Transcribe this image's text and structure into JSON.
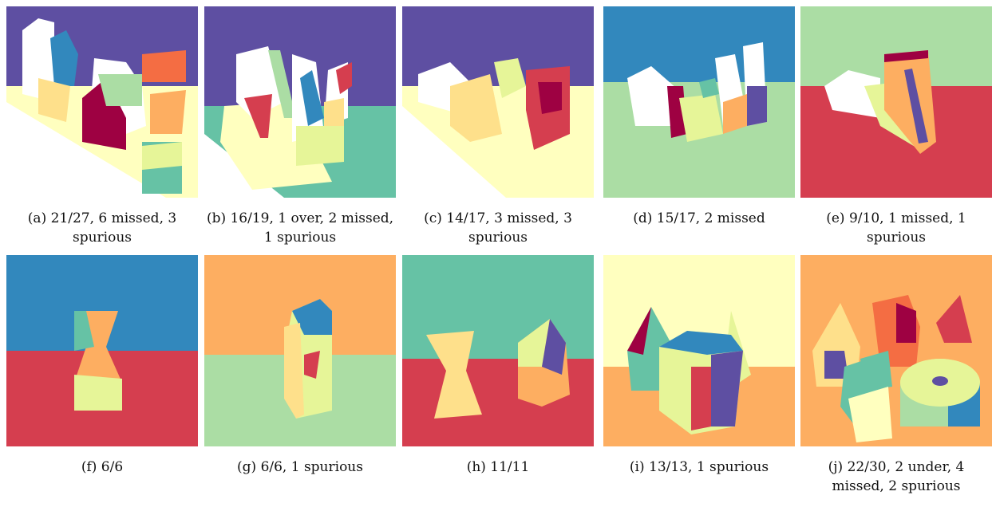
{
  "figure": {
    "panels": [
      {
        "label": "(a)",
        "caption": "(a) 21/27, 6 missed, 3 spurious"
      },
      {
        "label": "(b)",
        "caption": "(b) 16/19, 1 over, 2 missed, 1 spurious"
      },
      {
        "label": "(c)",
        "caption": "(c) 14/17, 3 missed, 3 spurious"
      },
      {
        "label": "(d)",
        "caption": "(d) 15/17, 2 missed"
      },
      {
        "label": "(e)",
        "caption": "(e) 9/10, 1 missed, 1 spurious"
      },
      {
        "label": "(f)",
        "caption": "(f) 6/6"
      },
      {
        "label": "(g)",
        "caption": "(g) 6/6, 1 spurious"
      },
      {
        "label": "(h)",
        "caption": "(h) 11/11"
      },
      {
        "label": "(i)",
        "caption": "(i) 13/13, 1 spurious"
      },
      {
        "label": "(j)",
        "caption": "(j) 22/30, 2 under, 4 missed, 2 spurious"
      }
    ]
  },
  "palette": {
    "purple": "#5e4fa2",
    "blue": "#3288bd",
    "teal": "#66c2a5",
    "lightgreen": "#abdda4",
    "yellow": "#e6f598",
    "paleyellow": "#ffffbf",
    "sand": "#fee08b",
    "orange": "#fdae61",
    "redorange": "#f46d43",
    "red": "#d53e4f",
    "crimson": "#9e0142"
  }
}
